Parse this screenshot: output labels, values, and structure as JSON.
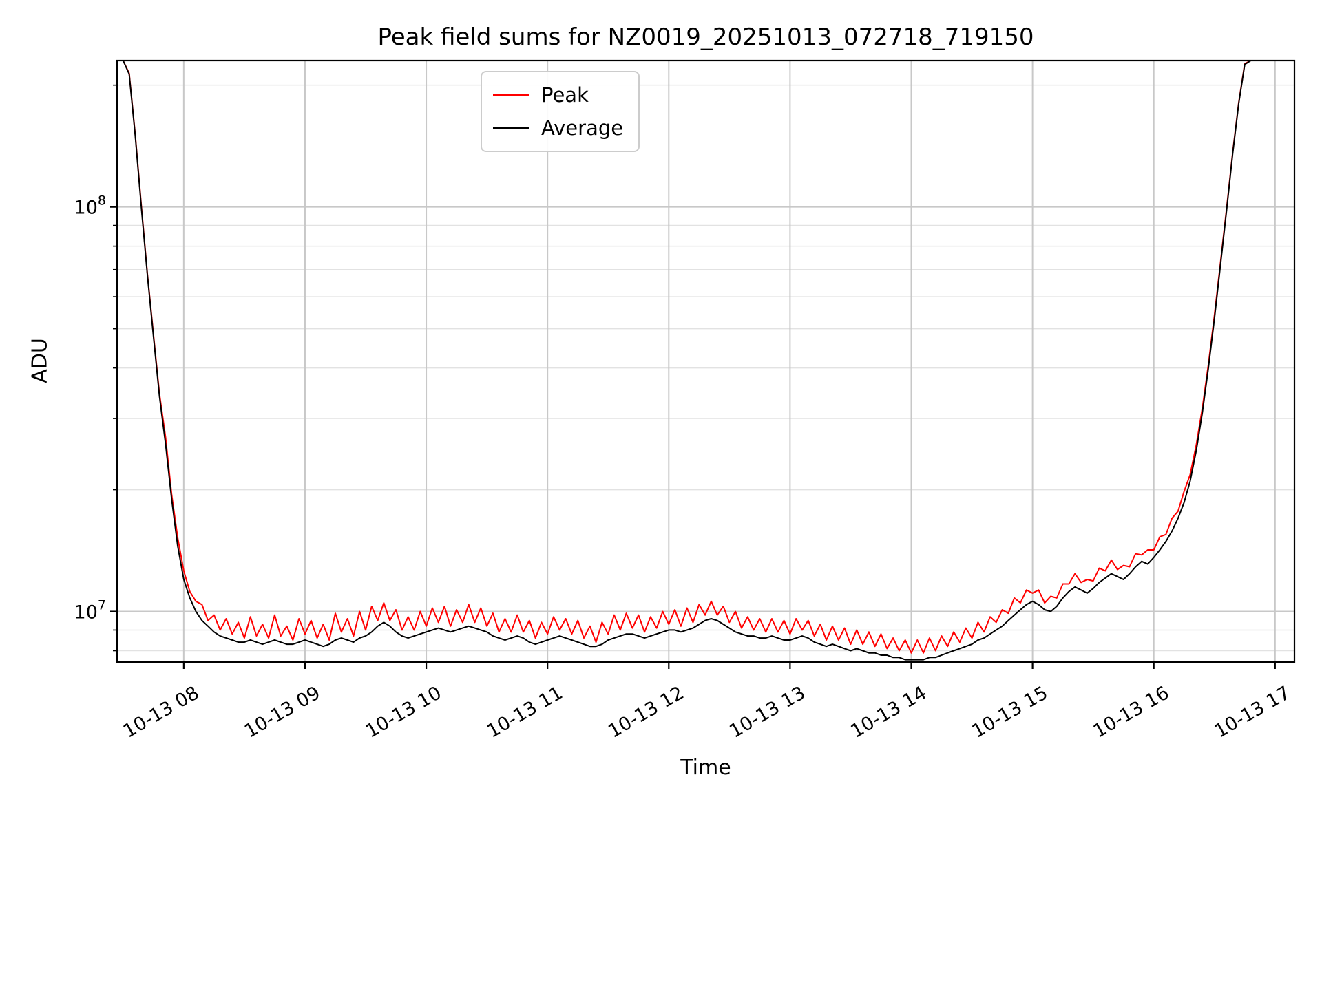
{
  "chart_data": {
    "type": "line",
    "title": "Peak field sums for NZ0019_20251013_072718_719150",
    "xlabel": "Time",
    "ylabel": "ADU",
    "yscale": "log",
    "grid": "both",
    "legend_position": "upper center-left",
    "ylim": [
      7500000.0,
      230000000.0
    ],
    "xlim_hours": [
      7.45,
      17.16
    ],
    "x_tick_hours": [
      8,
      9,
      10,
      11,
      12,
      13,
      14,
      15,
      16,
      17
    ],
    "x_tick_labels": [
      "10-13 08",
      "10-13 09",
      "10-13 10",
      "10-13 11",
      "10-13 12",
      "10-13 13",
      "10-13 14",
      "10-13 15",
      "10-13 16",
      "10-13 17"
    ],
    "y_major_ticks": [
      10000000.0,
      100000000.0
    ],
    "y_major_tick_exponents": [
      7,
      8
    ],
    "unit_scale": 1000000.0,
    "x_hours": [
      7.45,
      7.5,
      7.55,
      7.6,
      7.65,
      7.7,
      7.75,
      7.8,
      7.85,
      7.9,
      7.95,
      8,
      8.05,
      8.1,
      8.15,
      8.2,
      8.25,
      8.3,
      8.35,
      8.4,
      8.45,
      8.5,
      8.55,
      8.6,
      8.65,
      8.7,
      8.75,
      8.8,
      8.85,
      8.9,
      8.95,
      9,
      9.05,
      9.1,
      9.15,
      9.2,
      9.25,
      9.3,
      9.35,
      9.4,
      9.45,
      9.5,
      9.55,
      9.6,
      9.65,
      9.7,
      9.75,
      9.8,
      9.85,
      9.9,
      9.95,
      10,
      10.05,
      10.1,
      10.15,
      10.2,
      10.25,
      10.3,
      10.35,
      10.4,
      10.45,
      10.5,
      10.55,
      10.6,
      10.65,
      10.7,
      10.75,
      10.8,
      10.85,
      10.9,
      10.95,
      11,
      11.05,
      11.1,
      11.15,
      11.2,
      11.25,
      11.3,
      11.35,
      11.4,
      11.45,
      11.5,
      11.55,
      11.6,
      11.65,
      11.7,
      11.75,
      11.8,
      11.85,
      11.9,
      11.95,
      12,
      12.05,
      12.1,
      12.15,
      12.2,
      12.25,
      12.3,
      12.35,
      12.4,
      12.45,
      12.5,
      12.55,
      12.6,
      12.65,
      12.7,
      12.75,
      12.8,
      12.85,
      12.9,
      12.95,
      13,
      13.05,
      13.1,
      13.15,
      13.2,
      13.25,
      13.3,
      13.35,
      13.4,
      13.45,
      13.5,
      13.55,
      13.6,
      13.65,
      13.7,
      13.75,
      13.8,
      13.85,
      13.9,
      13.95,
      14,
      14.05,
      14.1,
      14.15,
      14.2,
      14.25,
      14.3,
      14.35,
      14.4,
      14.45,
      14.5,
      14.55,
      14.6,
      14.65,
      14.7,
      14.75,
      14.8,
      14.85,
      14.9,
      14.95,
      15,
      15.05,
      15.1,
      15.15,
      15.2,
      15.25,
      15.3,
      15.35,
      15.4,
      15.45,
      15.5,
      15.55,
      15.6,
      15.65,
      15.7,
      15.75,
      15.8,
      15.85,
      15.9,
      15.95,
      16,
      16.05,
      16.1,
      16.15,
      16.2,
      16.25,
      16.3,
      16.35,
      16.4,
      16.45,
      16.5,
      16.55,
      16.6,
      16.65,
      16.7,
      16.75,
      16.8,
      16.85,
      16.9,
      16.95,
      17,
      17.05,
      17.1,
      17.15
    ],
    "series": [
      {
        "name": "Peak",
        "color": "#ff0000",
        "values_MADU": [
          230,
          230,
          214,
          151,
          101,
          68.5,
          48.5,
          34.5,
          27,
          19.5,
          15.2,
          12.6,
          11.2,
          10.6,
          10.4,
          9.5,
          9.8,
          9,
          9.6,
          8.8,
          9.4,
          8.6,
          9.7,
          8.7,
          9.3,
          8.6,
          9.8,
          8.7,
          9.2,
          8.5,
          9.6,
          8.8,
          9.5,
          8.6,
          9.3,
          8.5,
          9.9,
          8.9,
          9.6,
          8.7,
          10,
          9,
          10.3,
          9.5,
          10.5,
          9.5,
          10.1,
          9,
          9.7,
          9,
          10,
          9.2,
          10.2,
          9.4,
          10.3,
          9.2,
          10.1,
          9.4,
          10.4,
          9.4,
          10.2,
          9.2,
          9.9,
          8.9,
          9.6,
          8.9,
          9.8,
          8.9,
          9.5,
          8.6,
          9.4,
          8.8,
          9.7,
          9,
          9.6,
          8.8,
          9.5,
          8.6,
          9.2,
          8.4,
          9.4,
          8.8,
          9.8,
          9,
          9.9,
          9.1,
          9.8,
          8.9,
          9.7,
          9.1,
          10,
          9.3,
          10.1,
          9.2,
          10.2,
          9.4,
          10.4,
          9.8,
          10.6,
          9.8,
          10.3,
          9.4,
          10,
          9.1,
          9.7,
          9,
          9.6,
          8.9,
          9.6,
          8.9,
          9.5,
          8.8,
          9.6,
          9,
          9.5,
          8.7,
          9.3,
          8.5,
          9.2,
          8.5,
          9.1,
          8.3,
          9,
          8.3,
          8.9,
          8.2,
          8.8,
          8.1,
          8.6,
          8,
          8.5,
          7.9,
          8.5,
          7.9,
          8.6,
          8,
          8.7,
          8.2,
          8.9,
          8.4,
          9.1,
          8.6,
          9.4,
          8.9,
          9.7,
          9.4,
          10.1,
          9.9,
          10.8,
          10.5,
          11.3,
          11.1,
          11.3,
          10.5,
          10.9,
          10.8,
          11.7,
          11.7,
          12.4,
          11.8,
          12,
          11.9,
          12.8,
          12.6,
          13.4,
          12.7,
          13,
          12.9,
          13.9,
          13.8,
          14.2,
          14.2,
          15.3,
          15.5,
          17,
          17.7,
          19.8,
          21.8,
          25.8,
          31.8,
          40.8,
          54,
          73,
          99,
          136,
          181,
          226,
          230,
          230,
          230,
          230,
          230,
          230,
          230,
          230
        ]
      },
      {
        "name": "Average",
        "color": "#000000",
        "values_MADU": [
          230,
          230,
          213,
          150,
          100,
          68,
          48,
          34,
          26,
          19,
          14.5,
          12,
          10.8,
          10,
          9.5,
          9.2,
          8.9,
          8.7,
          8.6,
          8.5,
          8.4,
          8.4,
          8.5,
          8.4,
          8.3,
          8.4,
          8.5,
          8.4,
          8.3,
          8.3,
          8.4,
          8.5,
          8.4,
          8.3,
          8.2,
          8.3,
          8.5,
          8.6,
          8.5,
          8.4,
          8.6,
          8.7,
          8.9,
          9.2,
          9.4,
          9.2,
          8.9,
          8.7,
          8.6,
          8.7,
          8.8,
          8.9,
          9,
          9.1,
          9,
          8.9,
          9,
          9.1,
          9.2,
          9.1,
          9,
          8.9,
          8.7,
          8.6,
          8.5,
          8.6,
          8.7,
          8.6,
          8.4,
          8.3,
          8.4,
          8.5,
          8.6,
          8.7,
          8.6,
          8.5,
          8.4,
          8.3,
          8.2,
          8.2,
          8.3,
          8.5,
          8.6,
          8.7,
          8.8,
          8.8,
          8.7,
          8.6,
          8.7,
          8.8,
          8.9,
          9,
          9,
          8.9,
          9,
          9.1,
          9.3,
          9.5,
          9.6,
          9.5,
          9.3,
          9.1,
          8.9,
          8.8,
          8.7,
          8.7,
          8.6,
          8.6,
          8.7,
          8.6,
          8.5,
          8.5,
          8.6,
          8.7,
          8.6,
          8.4,
          8.3,
          8.2,
          8.3,
          8.2,
          8.1,
          8,
          8.1,
          8,
          7.9,
          7.9,
          7.8,
          7.8,
          7.7,
          7.7,
          7.6,
          7.6,
          7.6,
          7.6,
          7.7,
          7.7,
          7.8,
          7.9,
          8,
          8.1,
          8.2,
          8.3,
          8.5,
          8.6,
          8.8,
          9,
          9.2,
          9.5,
          9.8,
          10.1,
          10.4,
          10.6,
          10.4,
          10.1,
          10,
          10.3,
          10.8,
          11.2,
          11.5,
          11.3,
          11.1,
          11.4,
          11.8,
          12.1,
          12.4,
          12.2,
          12,
          12.4,
          12.9,
          13.3,
          13.1,
          13.6,
          14.2,
          14.9,
          15.8,
          17,
          18.6,
          21,
          25,
          31,
          40,
          53,
          72,
          98,
          135,
          180,
          225,
          230,
          230,
          230,
          230,
          230,
          230,
          230,
          230
        ]
      }
    ]
  },
  "legend": {
    "entries": [
      "Peak",
      "Average"
    ]
  },
  "colors": {
    "peak": "#ff0000",
    "average": "#000000",
    "grid_major": "#c8c8c8",
    "grid_minor": "#e2e2e2",
    "spine": "#000000"
  }
}
